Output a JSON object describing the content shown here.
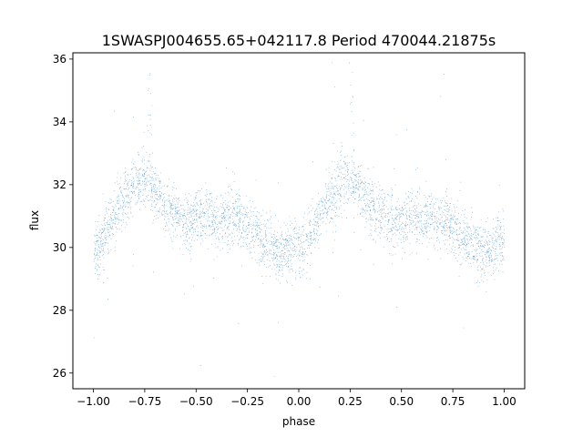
{
  "chart_data": {
    "type": "scatter",
    "title": "1SWASPJ004655.65+042117.8 Period 470044.21875s",
    "xlabel": "phase",
    "ylabel": "flux",
    "xlim": [
      -1.1,
      1.1
    ],
    "ylim": [
      25.5,
      36.2
    ],
    "x_ticks": [
      -1.0,
      -0.75,
      -0.5,
      -0.25,
      0.0,
      0.25,
      0.5,
      0.75,
      1.0
    ],
    "x_tick_labels": [
      "−1.00",
      "−0.75",
      "−0.50",
      "−0.25",
      "0.00",
      "0.25",
      "0.50",
      "0.75",
      "1.00"
    ],
    "y_ticks": [
      26,
      28,
      30,
      32,
      34,
      36
    ],
    "y_tick_labels": [
      "26",
      "28",
      "30",
      "32",
      "34",
      "36"
    ],
    "grid": false,
    "marker_color": "#1f77b4",
    "series": [
      {
        "phase_range": [
          -1.0,
          1.0
        ],
        "trend": {
          "phase": [
            0.0,
            0.02,
            0.05,
            0.08,
            0.1,
            0.12,
            0.15,
            0.18,
            0.2,
            0.22,
            0.25,
            0.28,
            0.3,
            0.33,
            0.36,
            0.4,
            0.43,
            0.46,
            0.5,
            0.55,
            0.6,
            0.65,
            0.7,
            0.75,
            0.8,
            0.85,
            0.9,
            0.95,
            1.0
          ],
          "flux": [
            29.9,
            30.0,
            30.3,
            30.7,
            31.0,
            31.3,
            31.6,
            31.8,
            32.0,
            32.1,
            32.2,
            32.0,
            31.8,
            31.5,
            31.3,
            31.1,
            30.9,
            30.8,
            30.9,
            31.0,
            30.8,
            31.0,
            30.9,
            30.6,
            30.4,
            30.1,
            29.8,
            30.0,
            30.2
          ]
        },
        "scatter_sigma": 0.45,
        "flare_phases": [
          -0.73,
          0.26
        ],
        "flare_peak": 35.6,
        "point_count": 24000
      }
    ]
  }
}
